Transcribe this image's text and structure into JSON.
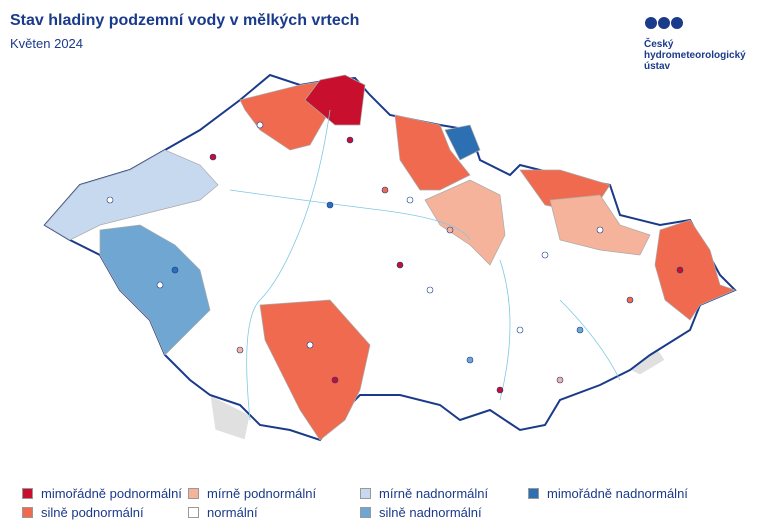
{
  "header": {
    "title": "Stav hladiny podzemní vody v mělkých vrtech",
    "subtitle": "Květen 2024"
  },
  "logo": {
    "lines": [
      "Český",
      "hydrometeorologický",
      "ústav"
    ]
  },
  "legend": {
    "items": [
      {
        "label": "mimořádně podnormální",
        "color": "#c8102e"
      },
      {
        "label": "mírně podnormální",
        "color": "#f4b39a"
      },
      {
        "label": "mírně nadnormální",
        "color": "#c6d9ef"
      },
      {
        "label": "mimořádně nadnormální",
        "color": "#2c6fb3"
      },
      {
        "label": "silně podnormální",
        "color": "#ef6a4f"
      },
      {
        "label": "normální",
        "color": "#ffffff"
      },
      {
        "label": "silně nadnormální",
        "color": "#6fa6d2"
      }
    ]
  }
}
